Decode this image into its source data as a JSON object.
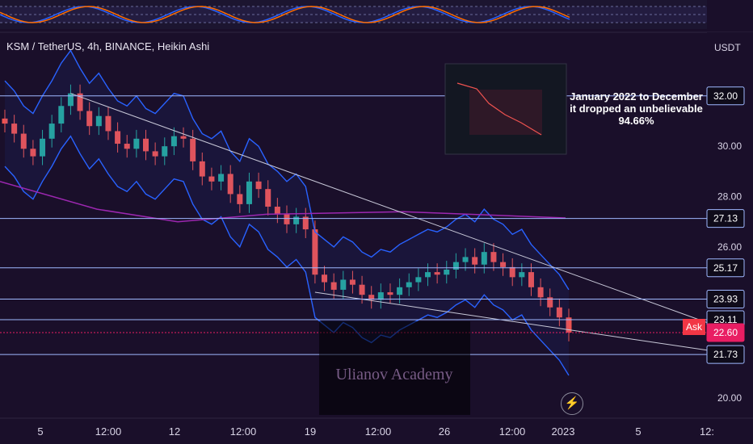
{
  "header": {
    "title": "KSM / TetherUS, 4h, BINANCE, Heikin Ashi",
    "unit": "USDT",
    "annotation": "January 2022 to December it dropped an unbelievable 94.66%"
  },
  "ask_label": "Ask",
  "watermark": "Ulianov Academy",
  "colors": {
    "bg": "#1a0f2a",
    "bull": "#26a69a",
    "bear": "#ef5350",
    "band": "#2962ff",
    "ma": "#9c27b0",
    "level": "#9fb8ff",
    "price": "#e91e63"
  },
  "chart_data": {
    "type": "candlestick",
    "title": "KSM / TetherUS, 4h, BINANCE, Heikin Ashi",
    "ylabel": "USDT",
    "ylim": [
      19.2,
      33.5
    ],
    "y_ticks": [
      20.0,
      26.0,
      28.0,
      30.0
    ],
    "x_ticks": [
      "5",
      "12:00",
      "12",
      "12:00",
      "19",
      "12:00",
      "26",
      "12:00",
      "2023",
      "5",
      "12:"
    ],
    "horizontal_levels": [
      {
        "label": "32.00",
        "value": 32.0,
        "boxed": true
      },
      {
        "label": "27.13",
        "value": 27.13,
        "boxed": true
      },
      {
        "label": "25.17",
        "value": 25.17,
        "boxed": true
      },
      {
        "label": "23.93",
        "value": 23.93,
        "boxed": true
      },
      {
        "label": "23.11",
        "value": 23.11,
        "boxed": true
      },
      {
        "label": "22.60",
        "value": 22.6,
        "boxed": true,
        "current": true
      },
      {
        "label": "21.73",
        "value": 21.73,
        "boxed": true
      }
    ],
    "close_series": [
      30.9,
      30.5,
      29.9,
      29.6,
      30.3,
      30.9,
      31.6,
      32.1,
      31.4,
      30.8,
      31.2,
      30.6,
      30.1,
      29.9,
      30.3,
      29.8,
      29.6,
      30.0,
      30.4,
      30.3,
      29.4,
      28.8,
      28.6,
      28.9,
      28.1,
      27.7,
      28.6,
      28.3,
      27.6,
      27.3,
      26.9,
      27.2,
      26.7,
      24.9,
      24.6,
      24.3,
      24.7,
      24.5,
      24.1,
      23.9,
      24.2,
      24.1,
      24.4,
      24.6,
      24.8,
      25.0,
      24.9,
      25.1,
      25.4,
      25.6,
      25.3,
      25.8,
      25.4,
      25.2,
      24.8,
      25.0,
      24.4,
      24.0,
      23.6,
      23.2,
      22.6
    ]
  }
}
